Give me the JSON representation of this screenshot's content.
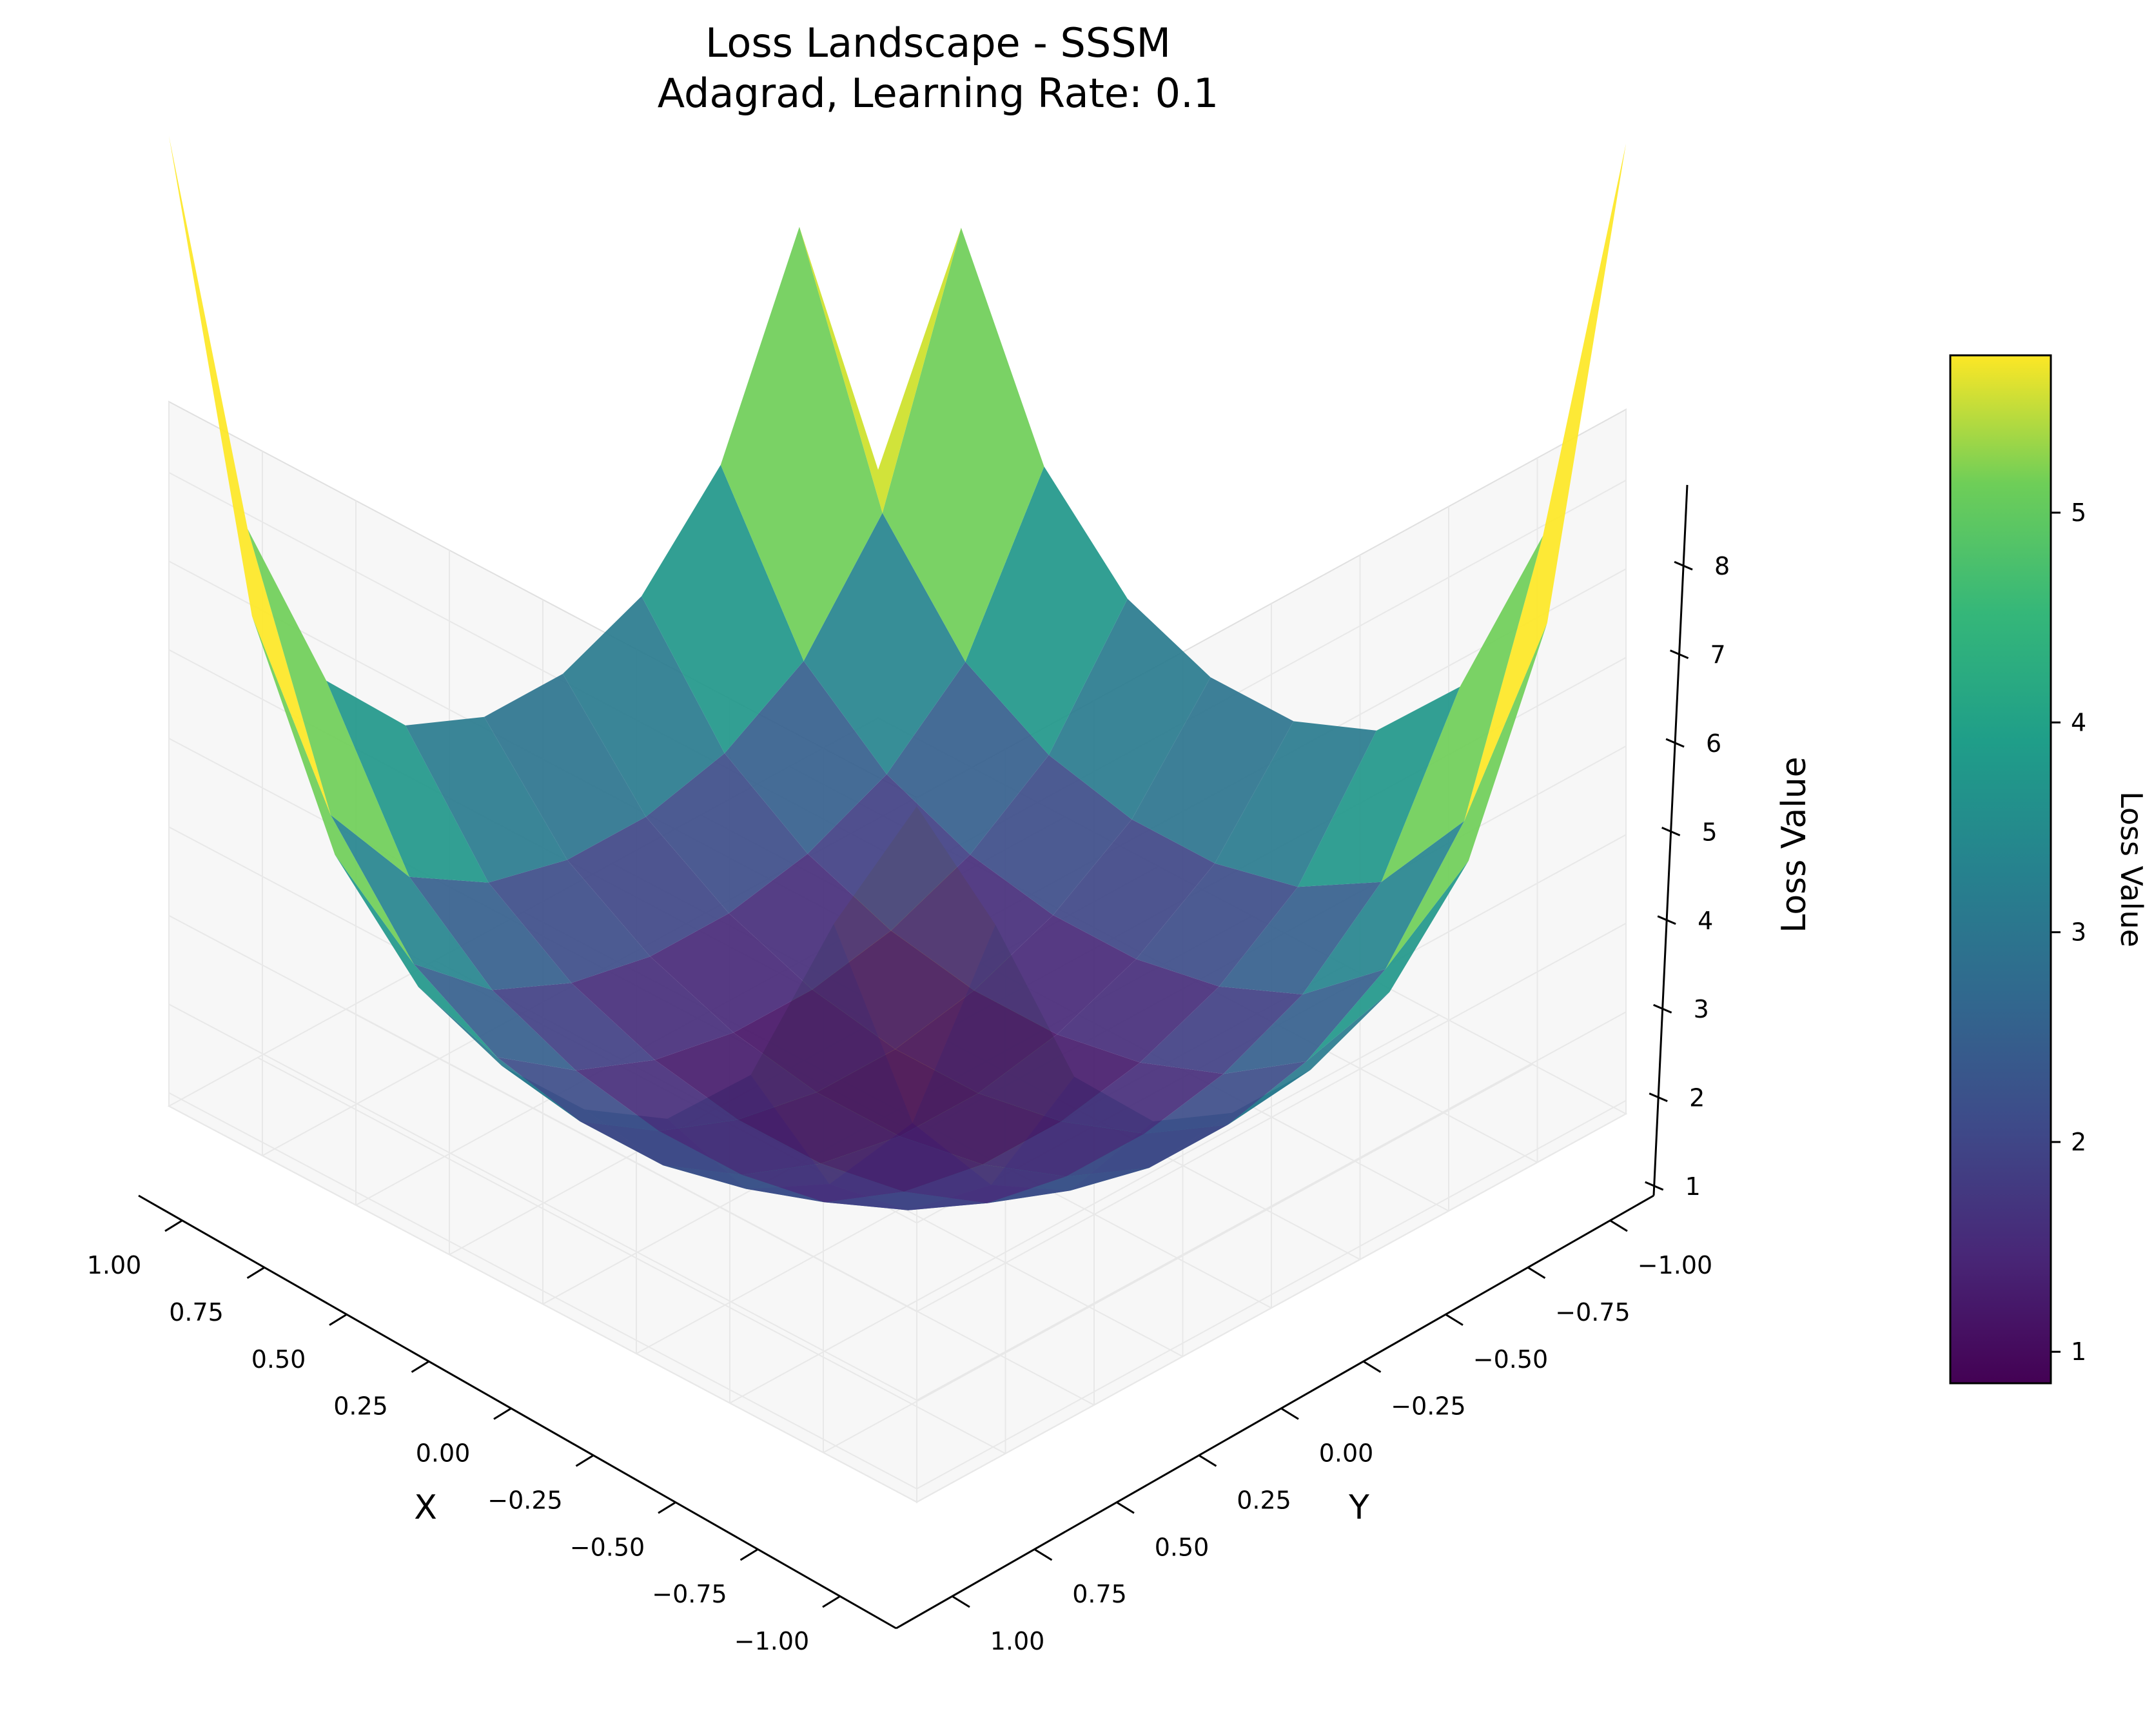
{
  "chart_data": {
    "type": "surface3d",
    "title": "Loss Landscape - SSSM",
    "subtitle": "Adagrad, Learning Rate: 0.1",
    "xlabel": "X",
    "ylabel": "Y",
    "zlabel": "Loss Value",
    "x_ticks": [
      "1.00",
      "0.75",
      "0.50",
      "0.25",
      "0.00",
      "−0.25",
      "−0.50",
      "−0.75",
      "−1.00"
    ],
    "y_ticks": [
      "−1.00",
      "−0.75",
      "−0.50",
      "−0.25",
      "0.00",
      "0.25",
      "0.50",
      "0.75",
      "1.00"
    ],
    "z_ticks": [
      "1",
      "2",
      "3",
      "4",
      "5",
      "6",
      "7",
      "8"
    ],
    "xlim": [
      -1,
      1
    ],
    "ylim": [
      -1,
      1
    ],
    "zlim": [
      0.85,
      8.8
    ],
    "grid_x": [
      -1.0,
      -0.778,
      -0.556,
      -0.333,
      -0.111,
      0.111,
      0.333,
      0.556,
      0.778,
      1.0
    ],
    "grid_y": [
      -1.0,
      -0.778,
      -0.556,
      -0.333,
      -0.111,
      0.111,
      0.333,
      0.556,
      0.778,
      1.0
    ],
    "colormap": "viridis",
    "colorbar": {
      "label": "Loss Value",
      "ticks": [
        "1",
        "2",
        "3",
        "4",
        "5"
      ],
      "range": [
        0.85,
        5.75
      ]
    },
    "grid": true
  }
}
